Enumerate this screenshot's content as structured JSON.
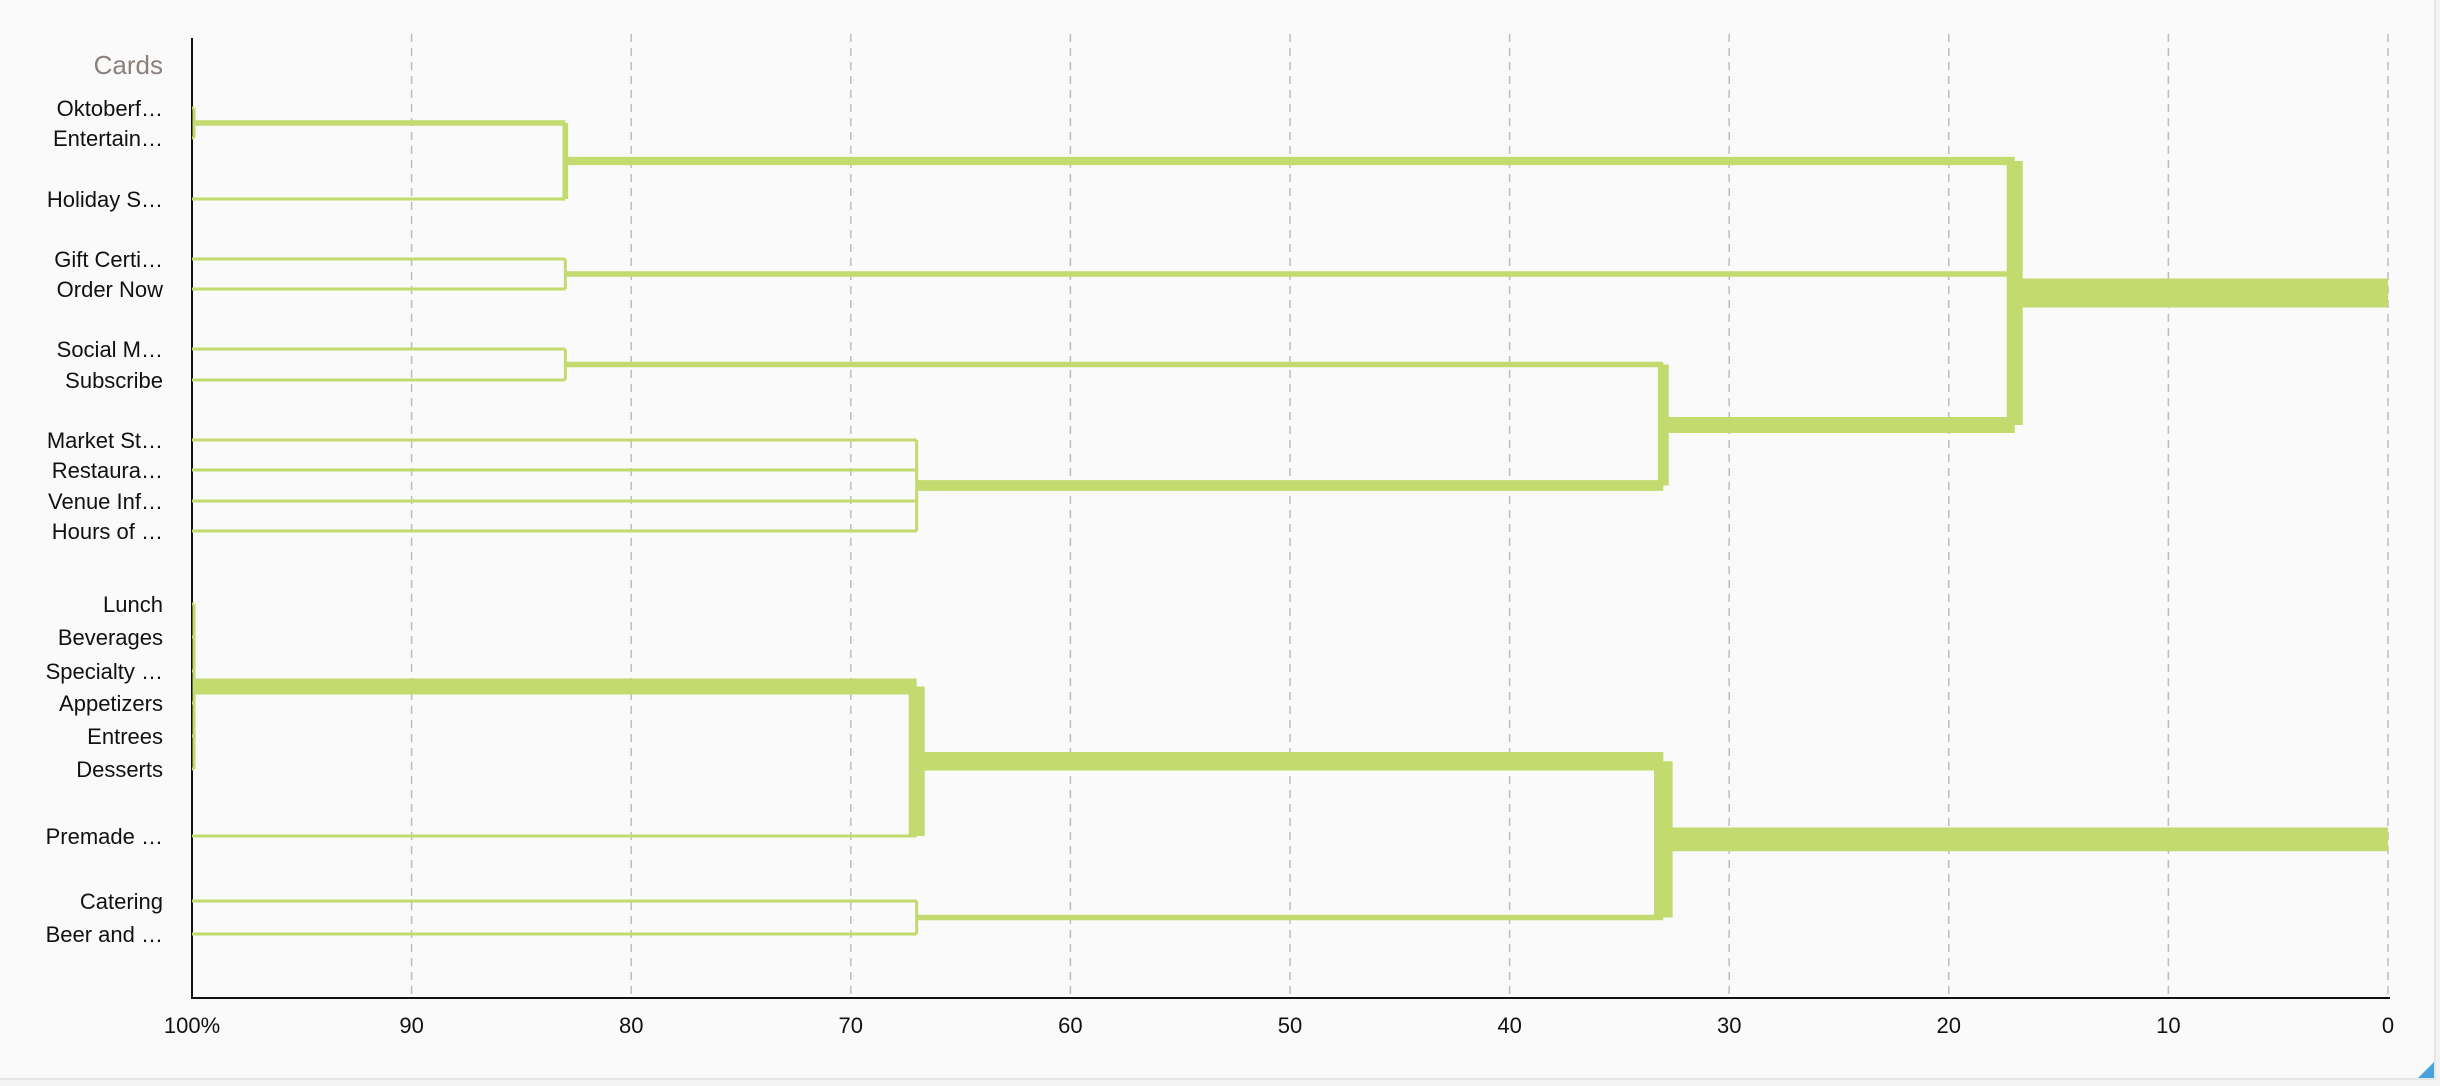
{
  "chart_data": {
    "type": "dendrogram",
    "header": "Cards",
    "leaves": [
      "Oktoberf…",
      "Entertain…",
      "Holiday S…",
      "Gift Certi…",
      "Order Now",
      "Social M…",
      "Subscribe",
      "Market St…",
      "Restaura…",
      "Venue Inf…",
      "Hours of …",
      "Lunch",
      "Beverages",
      "Specialty …",
      "Appetizers",
      "Entrees",
      "Desserts",
      "Premade …",
      "Catering",
      "Beer and …"
    ],
    "x_axis": {
      "ticks": [
        "100%",
        "90",
        "80",
        "70",
        "60",
        "50",
        "40",
        "30",
        "20",
        "10",
        "0"
      ],
      "range": [
        100,
        0
      ],
      "grid": "vertical dashed"
    },
    "merges": [
      {
        "members": [
          "Oktoberf…",
          "Entertain…"
        ],
        "similarity": 100
      },
      {
        "members": [
          "Oktoberf…",
          "Entertain…",
          "Holiday S…"
        ],
        "similarity": 83
      },
      {
        "members": [
          "Gift Certi…",
          "Order Now"
        ],
        "similarity": 83
      },
      {
        "members": [
          "Social M…",
          "Subscribe"
        ],
        "similarity": 83
      },
      {
        "members": [
          "Market St…",
          "Restaura…",
          "Venue Inf…",
          "Hours of …"
        ],
        "similarity": 67
      },
      {
        "members": [
          "Lunch",
          "Beverages",
          "Specialty …",
          "Appetizers",
          "Entrees",
          "Desserts"
        ],
        "similarity": 100
      },
      {
        "members": [
          "Lunch",
          "Beverages",
          "Specialty …",
          "Appetizers",
          "Entrees",
          "Desserts",
          "Premade …"
        ],
        "similarity": 67
      },
      {
        "members": [
          "Catering",
          "Beer and …"
        ],
        "similarity": 67
      },
      {
        "members": [
          "Social M…",
          "Subscribe",
          "Market St…",
          "Restaura…",
          "Venue Inf…",
          "Hours of …"
        ],
        "similarity": 33
      },
      {
        "members": [
          "Lunch",
          "Beverages",
          "Specialty …",
          "Appetizers",
          "Entrees",
          "Desserts",
          "Premade …",
          "Catering",
          "Beer and …"
        ],
        "similarity": 33
      },
      {
        "members": [
          "Oktoberf…",
          "Entertain…",
          "Holiday S…",
          "Gift Certi…",
          "Order Now",
          "Social M…",
          "Subscribe",
          "Market St…",
          "Restaura…",
          "Venue Inf…",
          "Hours of …"
        ],
        "similarity": 17
      }
    ],
    "color": "#c2da6e"
  }
}
